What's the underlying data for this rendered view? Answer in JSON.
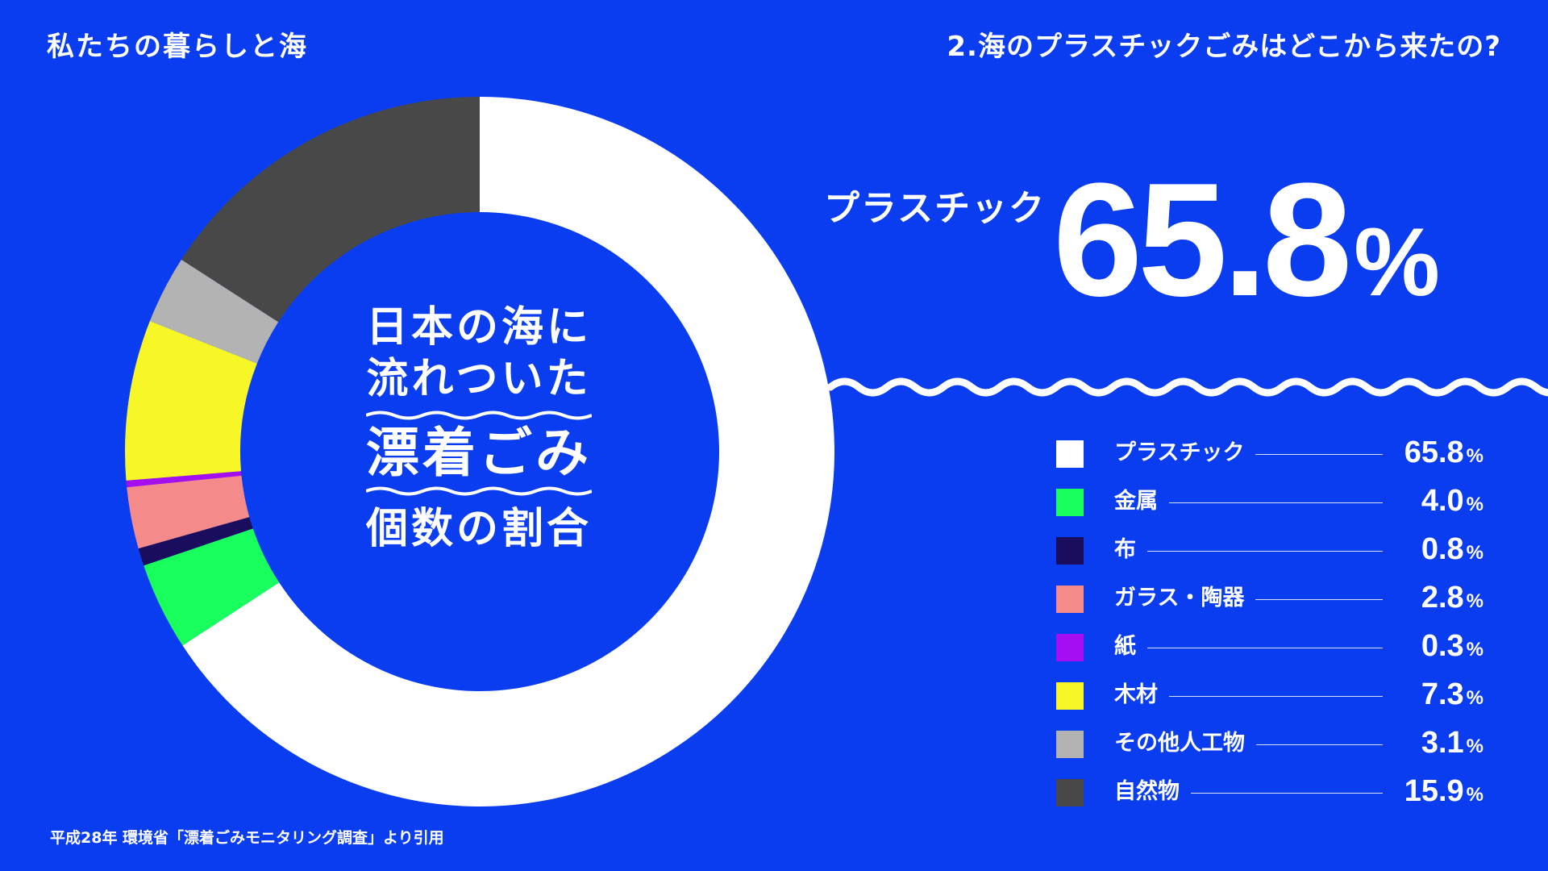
{
  "header": {
    "left_title": "私たちの暮らしと海",
    "right_title": "2.海のプラスチックごみはどこから来たの?"
  },
  "center_title": {
    "line1": "日本の海に",
    "line2": "流れついた",
    "line3": "漂着ごみ",
    "line4": "個数の割合"
  },
  "highlight": {
    "label": "プラスチック",
    "value": "65.8",
    "unit": "%"
  },
  "source": "平成28年 環境省「漂着ごみモニタリング調査」より引用",
  "unit": "%",
  "chart_data": {
    "type": "pie",
    "style": "donut",
    "start_angle_deg": 0,
    "direction": "clockwise",
    "categories": [
      "プラスチック",
      "金属",
      "布",
      "ガラス・陶器",
      "紙",
      "木材",
      "その他人工物",
      "自然物"
    ],
    "values": [
      65.8,
      4.0,
      0.8,
      2.8,
      0.3,
      7.3,
      3.1,
      15.9
    ],
    "display_values": [
      "65.8",
      "4.0",
      "0.8",
      "2.8",
      "0.3",
      "7.3",
      "3.1",
      "15.9"
    ],
    "colors": [
      "#ffffff",
      "#19ff5d",
      "#1a0d5e",
      "#f48a8a",
      "#a40ef0",
      "#f7f728",
      "#b3b3b3",
      "#484848"
    ],
    "legend": "right"
  }
}
